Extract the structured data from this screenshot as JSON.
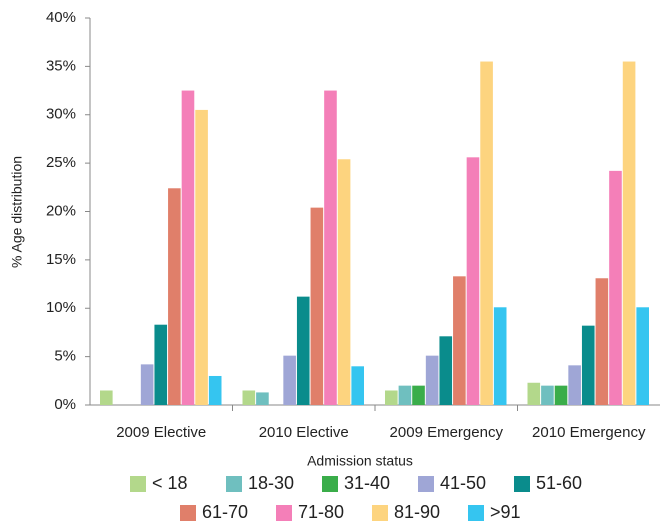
{
  "chart_data": {
    "type": "bar",
    "x_label": "Admission status",
    "y_label": "% Age distribution",
    "categories": [
      "2009 Elective",
      "2010 Elective",
      "2009 Emergency",
      "2010 Emergency"
    ],
    "series": [
      {
        "name": "< 18",
        "color": "#b3d88b",
        "values": [
          1.5,
          1.5,
          1.5,
          2.3
        ]
      },
      {
        "name": "18-30",
        "color": "#6fbfbf",
        "values": [
          0,
          1.3,
          2.0,
          2.0
        ]
      },
      {
        "name": "31-40",
        "color": "#3aad4a",
        "values": [
          0,
          0,
          2.0,
          2.0
        ]
      },
      {
        "name": "41-50",
        "color": "#9fa6d6",
        "values": [
          4.2,
          5.1,
          5.1,
          4.1
        ]
      },
      {
        "name": "51-60",
        "color": "#0a8c8c",
        "values": [
          8.3,
          11.2,
          7.1,
          8.2
        ]
      },
      {
        "name": "61-70",
        "color": "#e07f6a",
        "values": [
          22.4,
          20.4,
          13.3,
          13.1
        ]
      },
      {
        "name": "71-80",
        "color": "#f47fb8",
        "values": [
          32.5,
          32.5,
          25.6,
          24.2
        ]
      },
      {
        "name": "81-90",
        "color": "#fdd47f",
        "values": [
          30.5,
          25.4,
          35.5,
          35.5
        ]
      },
      {
        "name": ">91",
        "color": "#35c5f0",
        "values": [
          3.0,
          4.0,
          10.1,
          10.1
        ]
      }
    ],
    "ylim": [
      0,
      40
    ],
    "yticks": [
      {
        "value": 0,
        "label": "0%"
      },
      {
        "value": 5,
        "label": "5%"
      },
      {
        "value": 10,
        "label": "10%"
      },
      {
        "value": 15,
        "label": "15%"
      },
      {
        "value": 20,
        "label": "20%"
      },
      {
        "value": 25,
        "label": "25%"
      },
      {
        "value": 30,
        "label": "30%"
      },
      {
        "value": 35,
        "label": "35%"
      },
      {
        "value": 40,
        "label": "40%"
      }
    ],
    "legend_position": "bottom"
  }
}
